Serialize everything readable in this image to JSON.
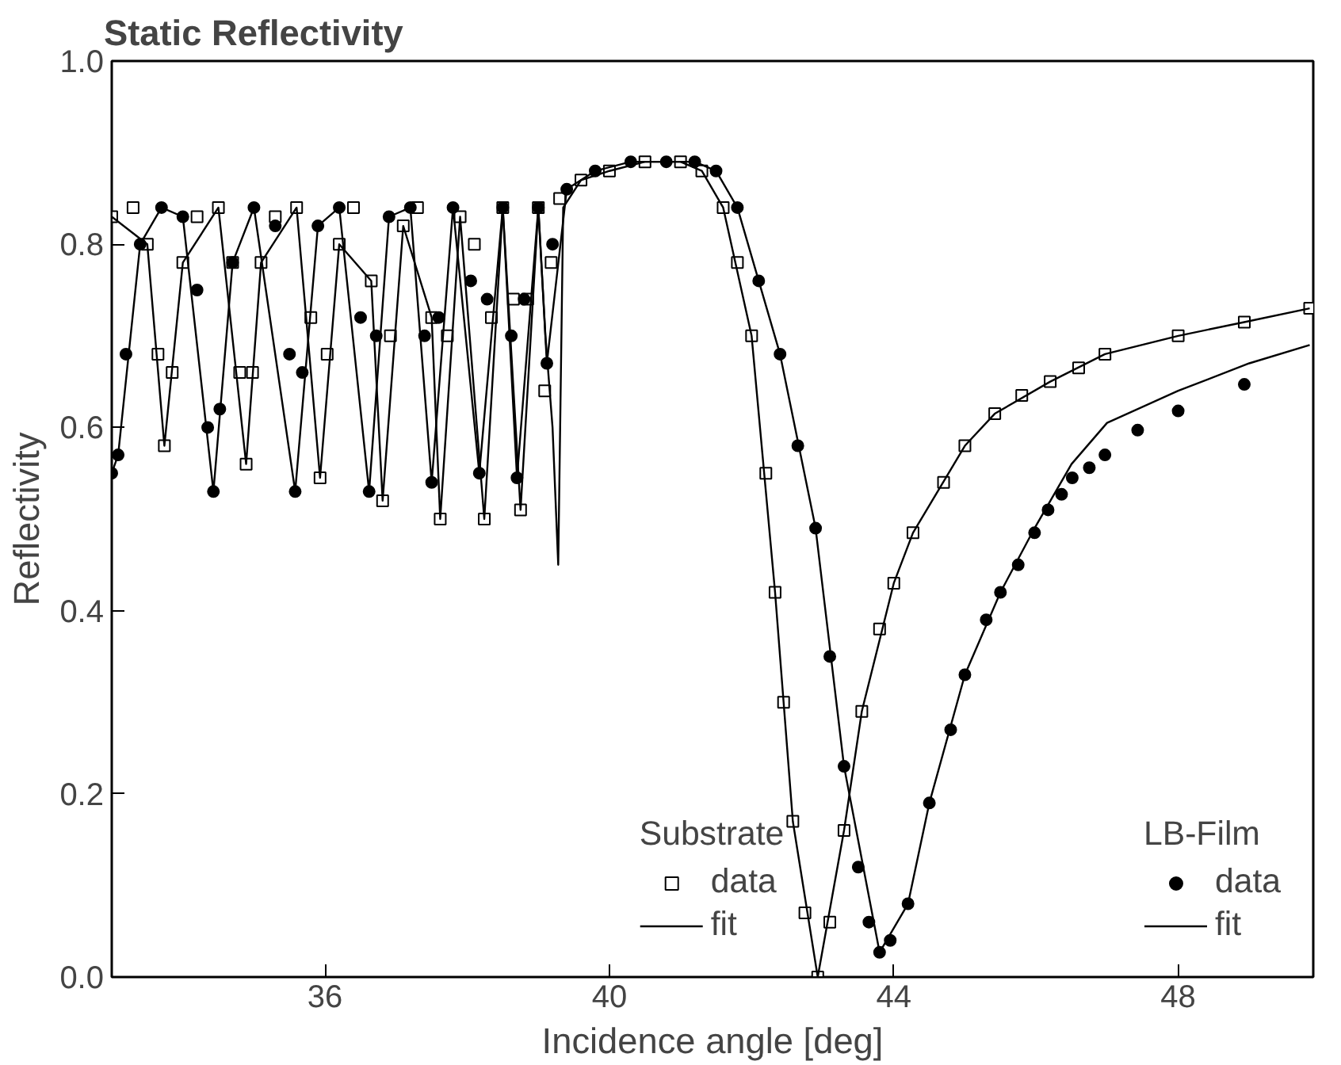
{
  "chart_data": {
    "type": "scatter",
    "title": "Static Reflectivity",
    "xlabel": "Incidence angle [deg]",
    "ylabel": "Reflectivity",
    "xlim": [
      33,
      49.9
    ],
    "xticks": [
      36,
      40,
      44,
      48
    ],
    "ylim": [
      0,
      1.0
    ],
    "yticks": [
      {
        "value": 0,
        "label": "0.0"
      },
      0.2,
      0.4,
      0.6,
      0.8,
      {
        "value": 1,
        "label": "1.0"
      }
    ],
    "grid": false,
    "legend": "bottom",
    "annotations": [
      "Substrate",
      "LB-Film"
    ],
    "series": [
      {
        "name": "data",
        "marker": "square",
        "color": "#000000",
        "x": [
          33.0,
          33.3,
          33.5,
          33.65,
          33.74,
          33.85,
          34.0,
          34.2,
          34.5,
          34.7,
          34.8,
          34.89,
          34.98,
          35.1,
          35.3,
          35.6,
          35.8,
          35.93,
          36.03,
          36.2,
          36.4,
          36.65,
          36.81,
          36.92,
          37.1,
          37.3,
          37.5,
          37.62,
          37.72,
          37.9,
          38.1,
          38.24,
          38.34,
          38.5,
          38.65,
          38.75,
          38.85,
          39.0,
          39.09,
          39.18,
          39.3,
          39.6,
          40.0,
          40.5,
          41.0,
          41.3,
          41.6,
          41.8,
          42.0,
          42.2,
          42.33,
          42.45,
          42.58,
          42.75,
          42.93,
          43.1,
          43.3,
          43.55,
          43.8,
          44.0,
          44.27,
          44.7,
          45.0,
          45.42,
          45.8,
          46.2,
          46.6,
          46.97,
          48.0,
          48.93,
          49.85
        ],
        "values": [
          0.83,
          0.84,
          0.8,
          0.68,
          0.58,
          0.66,
          0.78,
          0.83,
          0.84,
          0.78,
          0.66,
          0.56,
          0.66,
          0.78,
          0.83,
          0.84,
          0.72,
          0.545,
          0.68,
          0.8,
          0.84,
          0.76,
          0.52,
          0.7,
          0.82,
          0.84,
          0.72,
          0.5,
          0.7,
          0.83,
          0.8,
          0.5,
          0.72,
          0.84,
          0.74,
          0.51,
          0.74,
          0.84,
          0.64,
          0.78,
          0.85,
          0.87,
          0.88,
          0.89,
          0.89,
          0.88,
          0.84,
          0.78,
          0.7,
          0.55,
          0.42,
          0.3,
          0.17,
          0.07,
          0.0,
          0.06,
          0.16,
          0.29,
          0.38,
          0.43,
          0.485,
          0.54,
          0.58,
          0.615,
          0.635,
          0.65,
          0.665,
          0.68,
          0.7,
          0.715,
          0.73
        ]
      },
      {
        "name": "fit",
        "type": "line",
        "color": "#000000",
        "x": [
          33.0,
          33.5,
          33.74,
          34.0,
          34.5,
          34.89,
          35.1,
          35.6,
          35.93,
          36.2,
          36.65,
          36.81,
          37.1,
          37.5,
          37.62,
          37.9,
          38.24,
          38.5,
          38.75,
          39.0,
          39.1,
          39.2,
          39.28,
          39.35,
          39.6,
          40.0,
          40.5,
          41.0,
          41.3,
          41.6,
          42.0,
          42.33,
          42.58,
          42.93,
          43.3,
          43.55,
          44.0,
          44.27,
          45.0,
          45.42,
          46.2,
          46.97,
          48.0,
          48.93,
          49.85
        ],
        "values": [
          0.83,
          0.8,
          0.58,
          0.78,
          0.84,
          0.56,
          0.78,
          0.84,
          0.545,
          0.8,
          0.76,
          0.52,
          0.82,
          0.72,
          0.5,
          0.83,
          0.5,
          0.84,
          0.51,
          0.84,
          0.7,
          0.6,
          0.45,
          0.84,
          0.87,
          0.88,
          0.89,
          0.89,
          0.88,
          0.84,
          0.7,
          0.42,
          0.17,
          0.0,
          0.16,
          0.29,
          0.43,
          0.485,
          0.58,
          0.615,
          0.65,
          0.68,
          0.7,
          0.715,
          0.73
        ]
      },
      {
        "name": "data",
        "marker": "circle",
        "color": "#000000",
        "x": [
          33.0,
          33.09,
          33.2,
          33.4,
          33.7,
          34.0,
          34.2,
          34.35,
          34.43,
          34.52,
          34.7,
          35.0,
          35.3,
          35.5,
          35.58,
          35.68,
          35.9,
          36.2,
          36.5,
          36.62,
          36.72,
          36.9,
          37.2,
          37.4,
          37.5,
          37.6,
          37.8,
          38.05,
          38.17,
          38.28,
          38.5,
          38.62,
          38.7,
          38.8,
          39.0,
          39.12,
          39.2,
          39.4,
          39.8,
          40.3,
          40.8,
          41.2,
          41.5,
          41.8,
          42.1,
          42.4,
          42.65,
          42.9,
          43.1,
          43.3,
          43.5,
          43.65,
          43.8,
          43.95,
          44.2,
          44.5,
          44.8,
          45.0,
          45.3,
          45.5,
          45.75,
          45.98,
          46.17,
          46.36,
          46.51,
          46.75,
          46.97,
          47.43,
          48.0,
          48.93
        ],
        "values": [
          0.55,
          0.57,
          0.68,
          0.8,
          0.84,
          0.83,
          0.75,
          0.6,
          0.53,
          0.62,
          0.78,
          0.84,
          0.82,
          0.68,
          0.53,
          0.66,
          0.82,
          0.84,
          0.72,
          0.53,
          0.7,
          0.83,
          0.84,
          0.7,
          0.54,
          0.72,
          0.84,
          0.76,
          0.55,
          0.74,
          0.84,
          0.7,
          0.545,
          0.74,
          0.84,
          0.67,
          0.8,
          0.86,
          0.88,
          0.89,
          0.89,
          0.89,
          0.88,
          0.84,
          0.76,
          0.68,
          0.58,
          0.49,
          0.35,
          0.23,
          0.12,
          0.06,
          0.027,
          0.04,
          0.08,
          0.19,
          0.27,
          0.33,
          0.39,
          0.42,
          0.45,
          0.485,
          0.51,
          0.527,
          0.545,
          0.556,
          0.57,
          0.597,
          0.618,
          0.647
        ]
      },
      {
        "name": "fit",
        "type": "line",
        "color": "#000000",
        "x": [
          33.0,
          33.09,
          33.4,
          33.7,
          34.0,
          34.43,
          34.7,
          35.0,
          35.58,
          35.9,
          36.2,
          36.62,
          36.9,
          37.2,
          37.5,
          37.8,
          38.17,
          38.5,
          38.7,
          39.0,
          39.12,
          39.4,
          39.8,
          40.3,
          40.8,
          41.2,
          41.5,
          41.8,
          42.1,
          42.4,
          42.9,
          43.3,
          43.8,
          44.2,
          44.5,
          45.0,
          45.5,
          45.98,
          46.5,
          47.0,
          48.0,
          49.0,
          49.85
        ],
        "values": [
          0.55,
          0.57,
          0.8,
          0.84,
          0.83,
          0.53,
          0.78,
          0.84,
          0.53,
          0.82,
          0.84,
          0.53,
          0.83,
          0.84,
          0.54,
          0.84,
          0.55,
          0.84,
          0.545,
          0.84,
          0.67,
          0.86,
          0.88,
          0.89,
          0.89,
          0.89,
          0.88,
          0.84,
          0.76,
          0.68,
          0.49,
          0.23,
          0.027,
          0.08,
          0.19,
          0.33,
          0.42,
          0.49,
          0.56,
          0.605,
          0.64,
          0.67,
          0.69
        ]
      }
    ]
  }
}
